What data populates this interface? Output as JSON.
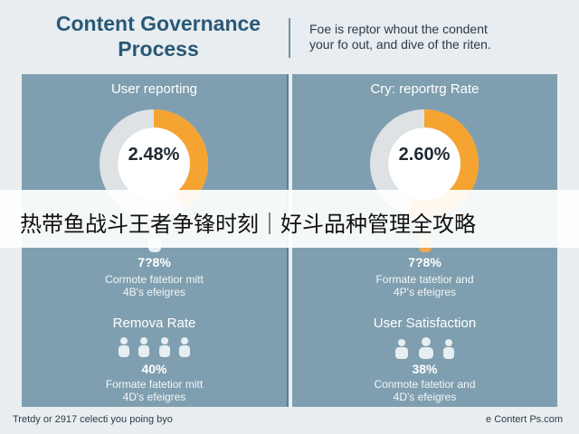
{
  "header": {
    "title_line1": "Content Governance",
    "title_line2": "Process",
    "subtitle_line1": "Foe is reptor whout the condent",
    "subtitle_line2": "your fo out, and dive of the riten."
  },
  "panels": {
    "left": {
      "donut_title": "User reporting",
      "donut_value": "2.48%",
      "donut_fill": 0.4,
      "stat_value": "7?8%",
      "stat_desc_line1": "Cormote fatetior mitt",
      "stat_desc_line2": "4B's efeigres",
      "bottom_title": "Remova Rate",
      "bottom_value": "40%",
      "bottom_desc_line1": "Formate fatetior mitt",
      "bottom_desc_line2": "4D's efeigres"
    },
    "right": {
      "donut_title": "Cry: reportrg Rate",
      "donut_value": "2.60%",
      "donut_fill": 0.55,
      "stat_value": "7?8%",
      "stat_desc_line1": "Formate tatetior and",
      "stat_desc_line2": "4P's efeigres",
      "bottom_title": "User Satisfaction",
      "bottom_value": "38%",
      "bottom_desc_line1": "Conmote fatetior and",
      "bottom_desc_line2": "4D's efeigres"
    }
  },
  "banner": {
    "text": "热带鱼战斗王者争锋时刻｜好斗品种管理全攻略"
  },
  "footer": {
    "left": "Tretdy or 2917 celecti you poing byo",
    "right": "e Contert Ps.com"
  },
  "colors": {
    "accent_orange": "#f5a431",
    "donut_track": "#dfe2e4",
    "panel_bg": "#7f9fb0",
    "title_blue": "#2a5877",
    "person_light": "#e7eef2",
    "person_orange": "#f0a850"
  },
  "icons": [
    "person-icon"
  ]
}
